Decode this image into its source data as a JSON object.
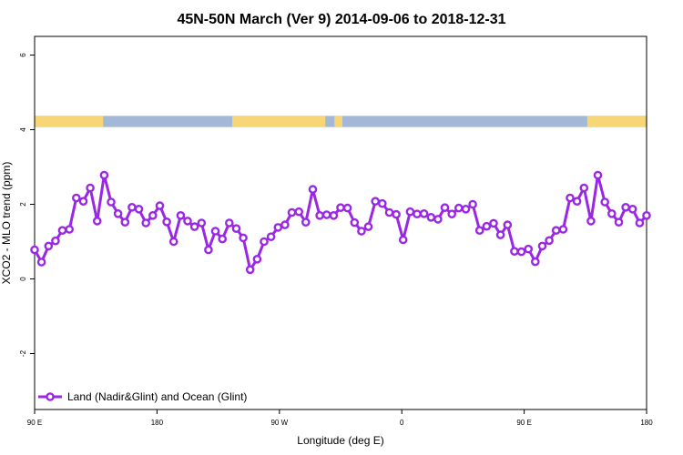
{
  "chart_data": {
    "type": "line",
    "title": "45N-50N March (Ver 9)   2014-09-06 to 2018-12-31",
    "xlabel": "Longitude (deg E)",
    "ylabel": "XCO2 - MLO trend (ppm)",
    "xlim": [
      0,
      100
    ],
    "ylim": [
      -3.5,
      6.5
    ],
    "x_tick_labels": [
      "90 E",
      "180",
      "90 W",
      "0",
      "90 E",
      "180"
    ],
    "y_ticks": [
      -2,
      0,
      2,
      4,
      6
    ],
    "y_tick_labels": [
      "-2",
      "0",
      "2",
      "4",
      "6"
    ],
    "grid": false,
    "legend_position": "bottom-left",
    "colors": {
      "series": "#9b27e6",
      "land": "#f7d675",
      "ocean": "#a3b7d7"
    },
    "series": [
      {
        "name": "Land (Nadir&Glint) and Ocean (Glint)",
        "values": [
          0.78,
          0.45,
          0.88,
          1.02,
          1.3,
          1.33,
          2.17,
          2.08,
          2.44,
          1.55,
          2.78,
          2.06,
          1.75,
          1.52,
          1.92,
          1.87,
          1.5,
          1.7,
          1.96,
          1.53,
          1.0,
          1.7,
          1.55,
          1.4,
          1.5,
          0.78,
          1.28,
          1.07,
          1.5,
          1.35,
          1.1,
          0.25,
          0.53,
          1.0,
          1.13,
          1.38,
          1.45,
          1.78,
          1.8,
          1.52,
          2.4,
          1.7,
          1.72,
          1.7,
          1.91,
          1.9,
          1.51,
          1.28,
          1.4,
          2.08,
          2.02,
          1.78,
          1.73,
          1.05,
          1.8,
          1.74,
          1.75,
          1.65,
          1.6,
          1.91,
          1.74,
          1.9,
          1.87,
          2.0,
          1.3,
          1.41,
          1.49,
          1.18,
          1.45,
          0.74,
          0.73,
          0.8,
          0.46,
          0.88,
          1.03,
          1.3,
          1.33,
          2.17,
          2.08,
          2.44,
          1.55,
          2.78,
          2.06,
          1.75,
          1.52,
          1.92,
          1.87,
          1.5,
          1.7
        ]
      }
    ]
  }
}
